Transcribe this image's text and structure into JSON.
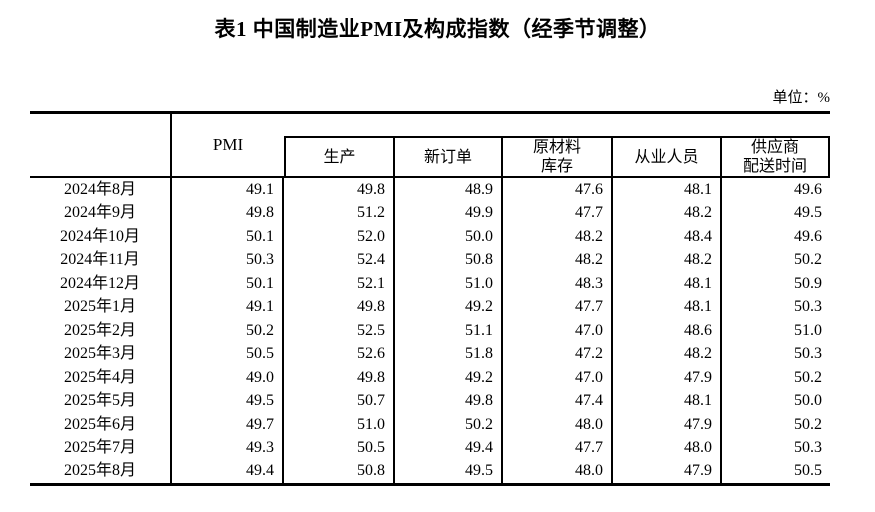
{
  "page": {
    "title": "表1 中国制造业PMI及构成指数（经季节调整）",
    "unit_label": "单位：%"
  },
  "table": {
    "headers": {
      "pmi": "PMI",
      "production": "生产",
      "new_orders": "新订单",
      "raw_materials_line1": "原材料",
      "raw_materials_line2": "库存",
      "employment": "从业人员",
      "supplier_line1": "供应商",
      "supplier_line2": "配送时间"
    },
    "rows": [
      {
        "month": "2024年8月",
        "pmi": "49.1",
        "production": "49.8",
        "new_orders": "48.9",
        "raw_materials": "47.6",
        "employment": "48.1",
        "supplier": "49.6"
      },
      {
        "month": "2024年9月",
        "pmi": "49.8",
        "production": "51.2",
        "new_orders": "49.9",
        "raw_materials": "47.7",
        "employment": "48.2",
        "supplier": "49.5"
      },
      {
        "month": "2024年10月",
        "pmi": "50.1",
        "production": "52.0",
        "new_orders": "50.0",
        "raw_materials": "48.2",
        "employment": "48.4",
        "supplier": "49.6"
      },
      {
        "month": "2024年11月",
        "pmi": "50.3",
        "production": "52.4",
        "new_orders": "50.8",
        "raw_materials": "48.2",
        "employment": "48.2",
        "supplier": "50.2"
      },
      {
        "month": "2024年12月",
        "pmi": "50.1",
        "production": "52.1",
        "new_orders": "51.0",
        "raw_materials": "48.3",
        "employment": "48.1",
        "supplier": "50.9"
      },
      {
        "month": "2025年1月",
        "pmi": "49.1",
        "production": "49.8",
        "new_orders": "49.2",
        "raw_materials": "47.7",
        "employment": "48.1",
        "supplier": "50.3"
      },
      {
        "month": "2025年2月",
        "pmi": "50.2",
        "production": "52.5",
        "new_orders": "51.1",
        "raw_materials": "47.0",
        "employment": "48.6",
        "supplier": "51.0"
      },
      {
        "month": "2025年3月",
        "pmi": "50.5",
        "production": "52.6",
        "new_orders": "51.8",
        "raw_materials": "47.2",
        "employment": "48.2",
        "supplier": "50.3"
      },
      {
        "month": "2025年4月",
        "pmi": "49.0",
        "production": "49.8",
        "new_orders": "49.2",
        "raw_materials": "47.0",
        "employment": "47.9",
        "supplier": "50.2"
      },
      {
        "month": "2025年5月",
        "pmi": "49.5",
        "production": "50.7",
        "new_orders": "49.8",
        "raw_materials": "47.4",
        "employment": "48.1",
        "supplier": "50.0"
      },
      {
        "month": "2025年6月",
        "pmi": "49.7",
        "production": "51.0",
        "new_orders": "50.2",
        "raw_materials": "48.0",
        "employment": "47.9",
        "supplier": "50.2"
      },
      {
        "month": "2025年7月",
        "pmi": "49.3",
        "production": "50.5",
        "new_orders": "49.4",
        "raw_materials": "47.7",
        "employment": "48.0",
        "supplier": "50.3"
      },
      {
        "month": "2025年8月",
        "pmi": "49.4",
        "production": "50.8",
        "new_orders": "49.5",
        "raw_materials": "48.0",
        "employment": "47.9",
        "supplier": "50.5"
      }
    ]
  }
}
